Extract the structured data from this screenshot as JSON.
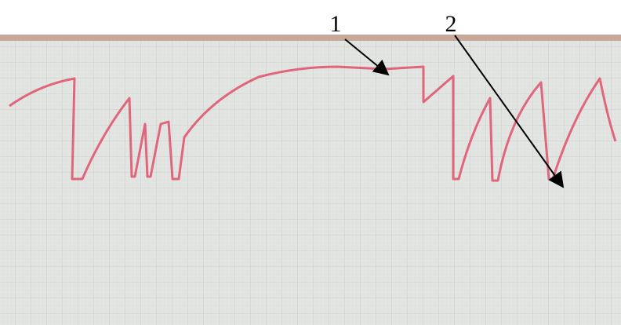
{
  "annotations": {
    "label_1": "1",
    "label_2": "2"
  }
}
